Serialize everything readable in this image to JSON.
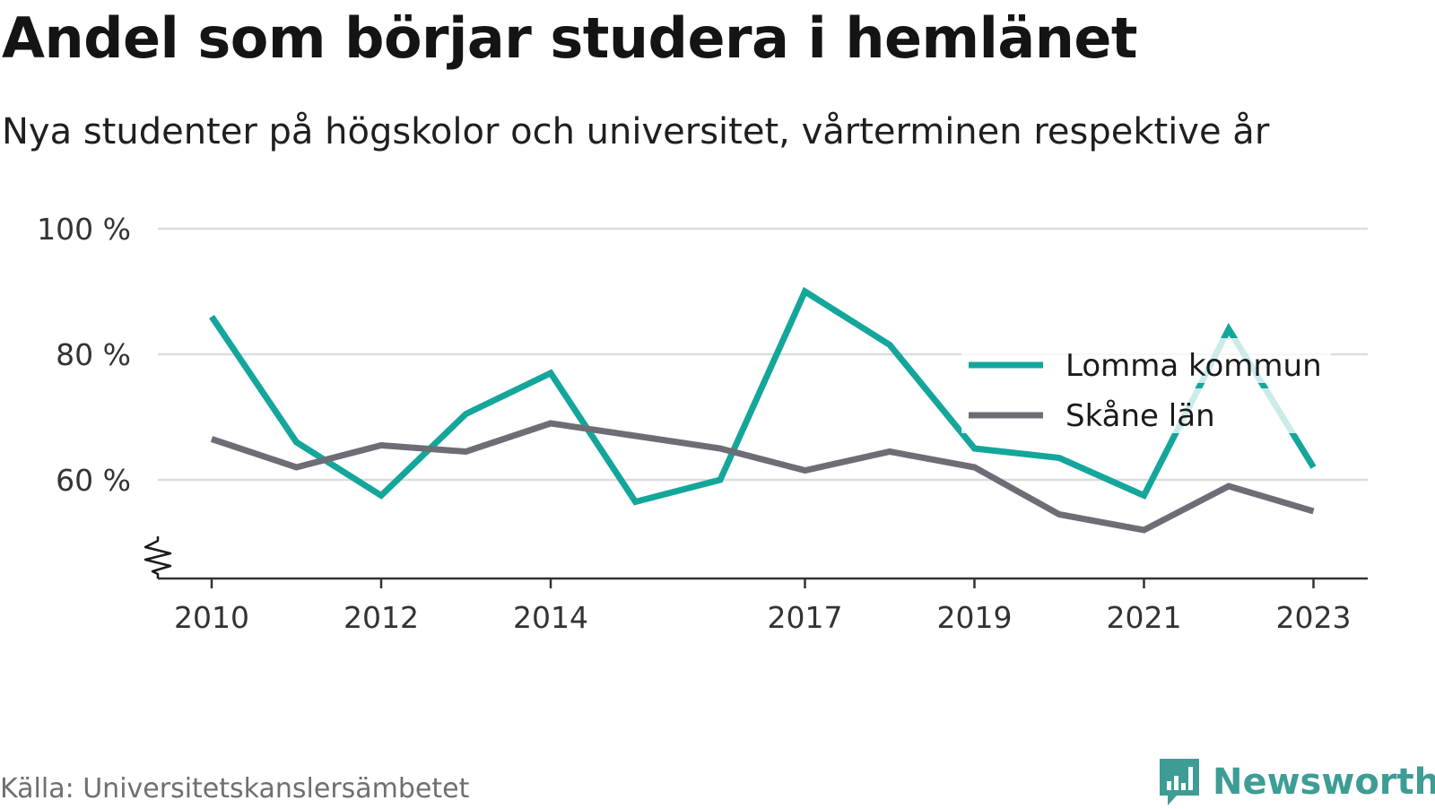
{
  "header": {
    "title": "Andel som börjar studera i hemlänet",
    "subtitle": "Nya studenter på högskolor och universitet, vårterminen respektive år"
  },
  "footer": {
    "source": "Källa: Universitetskanslersämbetet",
    "brand": "Newsworthy",
    "brand_icon": "bar-chart-speech-bubble-icon",
    "brand_color": "#3d9d95"
  },
  "chart_data": {
    "type": "line",
    "x": [
      2010,
      2011,
      2012,
      2013,
      2014,
      2015,
      2016,
      2017,
      2018,
      2019,
      2020,
      2021,
      2022,
      2023
    ],
    "x_tick_values": [
      2010,
      2012,
      2014,
      2017,
      2019,
      2021,
      2023
    ],
    "x_tick_labels": [
      "2010",
      "2012",
      "2014",
      "2017",
      "2019",
      "2021",
      "2023"
    ],
    "y_tick_values": [
      60,
      80,
      100
    ],
    "y_tick_labels": [
      "60 %",
      "80 %",
      "100 %"
    ],
    "ylim": [
      44,
      100
    ],
    "y_axis_break": true,
    "grid": "horizontal",
    "legend_position": "right",
    "series": [
      {
        "name": "Lomma kommun",
        "color": "#14a69b",
        "values": [
          86,
          66,
          57.5,
          70.5,
          77,
          56.5,
          60,
          90,
          81.5,
          65,
          63.5,
          57.5,
          84,
          62
        ]
      },
      {
        "name": "Skåne län",
        "color": "#6e6d76",
        "values": [
          66.5,
          62,
          65.5,
          64.5,
          69,
          67,
          65,
          61.5,
          64.5,
          62,
          54.5,
          52,
          59,
          55
        ]
      }
    ]
  }
}
